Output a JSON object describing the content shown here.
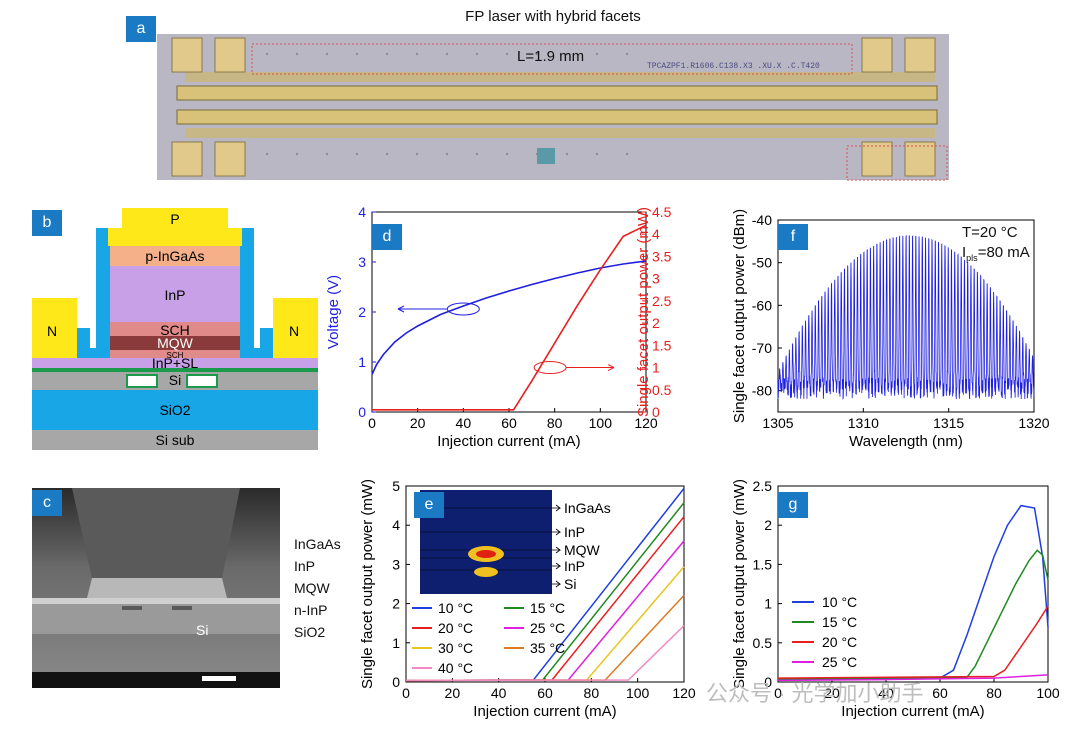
{
  "panels": {
    "a": {
      "tag": "a",
      "title": "FP laser with hybrid facets",
      "length_label": "L=1.9 mm",
      "chip_text": "TPCAZPF1.R1606.C138.X3 .XU.X .C.T420"
    },
    "b": {
      "tag": "b",
      "layers": {
        "p": "P",
        "inGaAs": "p-InGaAs",
        "inp": "InP",
        "sch_top": "SCH",
        "mqw": "MQW",
        "sch_bot": "SCH",
        "inp_sl": "InP+SL",
        "si": "Si",
        "sio2": "SiO2",
        "si_sub": "Si sub",
        "n_left": "N",
        "n_right": "N"
      }
    },
    "c": {
      "tag": "c",
      "labels": [
        "InGaAs",
        "InP",
        "MQW",
        "n-InP",
        "SiO2"
      ],
      "si_label": "Si"
    },
    "d": {
      "tag": "d"
    },
    "e": {
      "tag": "e",
      "inset_labels": [
        "InGaAs",
        "InP",
        "MQW",
        "InP",
        "Si"
      ]
    },
    "f": {
      "tag": "f",
      "annot_T": "T=20 °C",
      "annot_I": "I",
      "annot_I_sub": "pls",
      "annot_I_val": "=80 mA"
    },
    "g": {
      "tag": "g"
    }
  },
  "watermark": "公众号 · 光学加小助手",
  "chart_data": [
    {
      "id": "d",
      "type": "line",
      "xlabel": "Injection current (mA)",
      "ylabel": "Voltage (V)",
      "y2label": "Single facet output power (mW)",
      "xlim": [
        0,
        120
      ],
      "ylim": [
        0,
        4
      ],
      "y2lim": [
        0,
        4.5
      ],
      "xticks": [
        0,
        20,
        40,
        60,
        80,
        100,
        120
      ],
      "yticks": [
        0,
        1,
        2,
        3,
        4
      ],
      "y2ticks": [
        0,
        0.5,
        1,
        1.5,
        2,
        2.5,
        3,
        3.5,
        4,
        4.5
      ],
      "series": [
        {
          "axis": "left",
          "color": "#1f1fe0",
          "x": [
            0,
            2,
            5,
            10,
            15,
            20,
            30,
            40,
            50,
            60,
            70,
            80,
            90,
            100,
            110,
            120
          ],
          "y": [
            0.75,
            0.95,
            1.15,
            1.4,
            1.58,
            1.72,
            1.95,
            2.12,
            2.28,
            2.42,
            2.55,
            2.67,
            2.78,
            2.88,
            2.96,
            3.02
          ]
        },
        {
          "axis": "right",
          "color": "#e81f1f",
          "x": [
            0,
            62,
            70,
            80,
            90,
            100,
            110,
            120
          ],
          "y": [
            0.05,
            0.05,
            0.7,
            1.55,
            2.4,
            3.2,
            3.95,
            4.2
          ]
        }
      ]
    },
    {
      "id": "e",
      "type": "line",
      "xlabel": "Injection current (mA)",
      "ylabel": "Single facet output power (mW)",
      "xlim": [
        0,
        120
      ],
      "ylim": [
        0,
        5
      ],
      "xticks": [
        0,
        20,
        40,
        60,
        80,
        100,
        120
      ],
      "yticks": [
        0,
        1,
        2,
        3,
        4,
        5
      ],
      "series": [
        {
          "name": "10 °C",
          "color": "#1f3fe0",
          "threshold": 55,
          "slope": 0.076
        },
        {
          "name": "15 °C",
          "color": "#1f8a1f",
          "threshold": 59,
          "slope": 0.075
        },
        {
          "name": "20 °C",
          "color": "#e81f1f",
          "threshold": 63,
          "slope": 0.074
        },
        {
          "name": "25 °C",
          "color": "#e01fe0",
          "threshold": 70,
          "slope": 0.072
        },
        {
          "name": "30 °C",
          "color": "#e8c51f",
          "threshold": 78,
          "slope": 0.07
        },
        {
          "name": "35 °C",
          "color": "#e07a1f",
          "threshold": 86,
          "slope": 0.065
        },
        {
          "name": "40 °C",
          "color": "#f08ac0",
          "threshold": 96,
          "slope": 0.06
        }
      ]
    },
    {
      "id": "f",
      "type": "line",
      "xlabel": "Wavelength (nm)",
      "ylabel": "Single facet output power (dBm)",
      "xlim": [
        1305,
        1320
      ],
      "ylim": [
        -85,
        -40
      ],
      "xticks": [
        1305,
        1310,
        1315,
        1320
      ],
      "yticks": [
        -80,
        -70,
        -60,
        -50,
        -40
      ],
      "peak_wavelength": 1312.7,
      "peak_power": -43
    },
    {
      "id": "g",
      "type": "line",
      "xlabel": "Injection current (mA)",
      "ylabel": "Single facet output power (mW)",
      "xlim": [
        0,
        100
      ],
      "ylim": [
        0,
        2.5
      ],
      "xticks": [
        0,
        20,
        40,
        60,
        80,
        100
      ],
      "yticks": [
        0,
        0.5,
        1,
        1.5,
        2,
        2.5
      ],
      "series": [
        {
          "name": "10 °C",
          "color": "#1f3fe0",
          "x": [
            0,
            60,
            65,
            70,
            75,
            80,
            85,
            90,
            95,
            98,
            100
          ],
          "y": [
            0.03,
            0.05,
            0.15,
            0.6,
            1.1,
            1.6,
            2.0,
            2.25,
            2.22,
            1.6,
            0.7
          ]
        },
        {
          "name": "15 °C",
          "color": "#1f8a1f",
          "x": [
            0,
            70,
            73,
            78,
            83,
            88,
            93,
            96,
            98,
            100
          ],
          "y": [
            0.04,
            0.06,
            0.2,
            0.55,
            0.9,
            1.25,
            1.55,
            1.68,
            1.62,
            1.3
          ]
        },
        {
          "name": "20 °C",
          "color": "#e81f1f",
          "x": [
            0,
            80,
            84,
            88,
            92,
            96,
            100
          ],
          "y": [
            0.05,
            0.07,
            0.15,
            0.35,
            0.55,
            0.75,
            0.97
          ]
        },
        {
          "name": "25 °C",
          "color": "#e01fe0",
          "x": [
            0,
            40,
            80,
            100
          ],
          "y": [
            0.02,
            0.03,
            0.05,
            0.09
          ]
        }
      ]
    }
  ]
}
